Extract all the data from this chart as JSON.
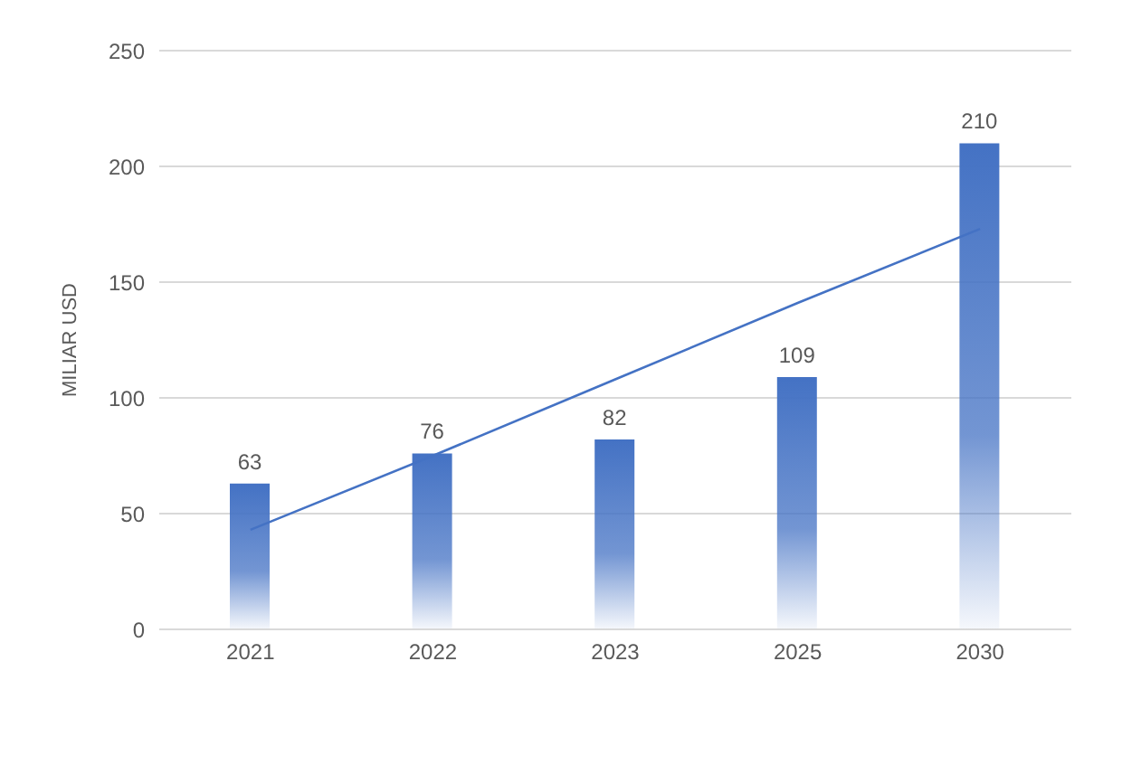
{
  "chart_data": {
    "type": "bar",
    "ylabel": "MILIAR USD",
    "categories": [
      "2021",
      "2022",
      "2023",
      "2025",
      "2030"
    ],
    "series": [
      {
        "color": "#4472c4",
        "values": [
          63,
          76,
          82,
          109,
          210
        ],
        "value_labels": [
          "63",
          "76",
          "82",
          "109",
          "210"
        ]
      },
      {
        "type": "line",
        "color": "#4472c4",
        "values": [
          43,
          75,
          108,
          141,
          173
        ]
      }
    ],
    "ylim": [
      0,
      250
    ],
    "yticks": [
      0,
      50,
      100,
      150,
      200,
      250
    ],
    "grid": "y",
    "legend": false
  }
}
